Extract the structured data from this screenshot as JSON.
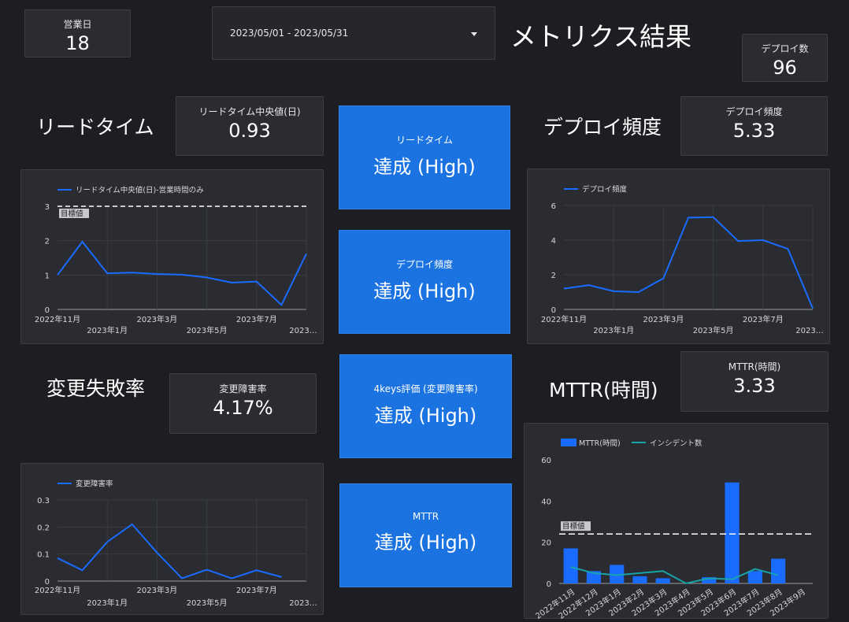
{
  "page_title": "メトリクス結果",
  "date_range": {
    "value": "2023/05/01 - 2023/05/31"
  },
  "scorecards": {
    "business_days": {
      "label": "営業日",
      "value": "18"
    },
    "deploy_count": {
      "label": "デプロイ数",
      "value": "96"
    },
    "lead_time_median": {
      "label": "リードタイム中央値(日)",
      "value": "0.93"
    },
    "deploy_frequency": {
      "label": "デプロイ頻度",
      "value": "5.33"
    },
    "change_failure_rate": {
      "label": "変更障害率",
      "value": "4.17%"
    },
    "mttr_hours": {
      "label": "MTTR(時間)",
      "value": "3.33"
    }
  },
  "section_titles": {
    "lead_time": "リードタイム",
    "deploy_frequency": "デプロイ頻度",
    "change_failure": "変更失敗率",
    "mttr": "MTTR(時間)"
  },
  "status_cards": [
    {
      "label": "リードタイム",
      "value": "達成 (High)"
    },
    {
      "label": "デプロイ頻度",
      "value": "達成 (High)"
    },
    {
      "label": "4keys評価 (変更障害率)",
      "value": "達成 (High)"
    },
    {
      "label": "MTTR",
      "value": "達成 (High)"
    }
  ],
  "colors": {
    "background": "#1d1e22",
    "card": "#2a2c31",
    "accent_blue": "#1a73e0",
    "line_blue": "#1a6bff",
    "teal": "#17a3a8"
  },
  "chart_data": [
    {
      "id": "lead_time",
      "type": "line",
      "legend_position": "top-left",
      "series": [
        {
          "name": "リードタイム中央値(日)-営業時間のみ",
          "values": [
            1.0,
            1.97,
            1.05,
            1.07,
            1.03,
            1.01,
            0.93,
            0.78,
            0.81,
            0.13,
            1.62
          ]
        }
      ],
      "x_ticks_top": [
        "2022年11月",
        "2023年3月",
        "2023年7月"
      ],
      "x_ticks_bottom": [
        "2023年1月",
        "2023年5月",
        "2023…"
      ],
      "y_ticks": [
        "0",
        "1",
        "2",
        "3"
      ],
      "ylim": [
        0,
        3
      ],
      "reference": {
        "label": "目標値",
        "value": 3
      },
      "grid": true
    },
    {
      "id": "deploy_frequency",
      "type": "line",
      "legend_position": "top-left",
      "series": [
        {
          "name": "デプロイ頻度",
          "values": [
            1.2,
            1.4,
            1.05,
            1.0,
            1.8,
            5.3,
            5.33,
            3.95,
            4.0,
            3.5,
            0.05
          ]
        }
      ],
      "x_ticks_top": [
        "2022年11月",
        "2023年3月",
        "2023年7月"
      ],
      "x_ticks_bottom": [
        "2023年1月",
        "2023年5月",
        "2023…"
      ],
      "y_ticks": [
        "0",
        "2",
        "4",
        "6"
      ],
      "ylim": [
        0,
        6
      ],
      "grid": true
    },
    {
      "id": "change_failure_rate",
      "type": "line",
      "legend_position": "top-left",
      "series": [
        {
          "name": "変更障害率",
          "values": [
            0.085,
            0.04,
            0.145,
            0.21,
            0.105,
            0.01,
            0.042,
            0.01,
            0.04,
            0.015
          ]
        }
      ],
      "x_ticks_top": [
        "2022年11月",
        "2023年3月",
        "2023年7月"
      ],
      "x_ticks_bottom": [
        "2023年1月",
        "2023年5月",
        "2023…"
      ],
      "y_ticks": [
        "0",
        "0.1",
        "0.2",
        "0.3"
      ],
      "ylim": [
        0,
        0.3
      ],
      "grid": true
    },
    {
      "id": "mttr",
      "type": "bar",
      "legend_position": "top-left",
      "categories": [
        "2022年11月",
        "2022年12月",
        "2023年1月",
        "2023年2月",
        "2023年3月",
        "2023年4月",
        "2023年5月",
        "2023年6月",
        "2023年7月",
        "2023年8月",
        "2023年9月"
      ],
      "series": [
        {
          "name": "MTTR(時間)",
          "type": "bar",
          "values": [
            17,
            6,
            9,
            3.5,
            2.5,
            0,
            3,
            49,
            6,
            12,
            null
          ]
        },
        {
          "name": "インシデント数",
          "type": "line",
          "values": [
            8,
            5,
            4,
            5,
            6,
            0,
            2.5,
            2,
            7,
            4,
            null
          ]
        }
      ],
      "y_ticks": [
        "0",
        "20",
        "40",
        "60"
      ],
      "ylim": [
        0,
        60
      ],
      "reference": {
        "label": "目標値",
        "value": 24
      },
      "grid": false
    }
  ]
}
